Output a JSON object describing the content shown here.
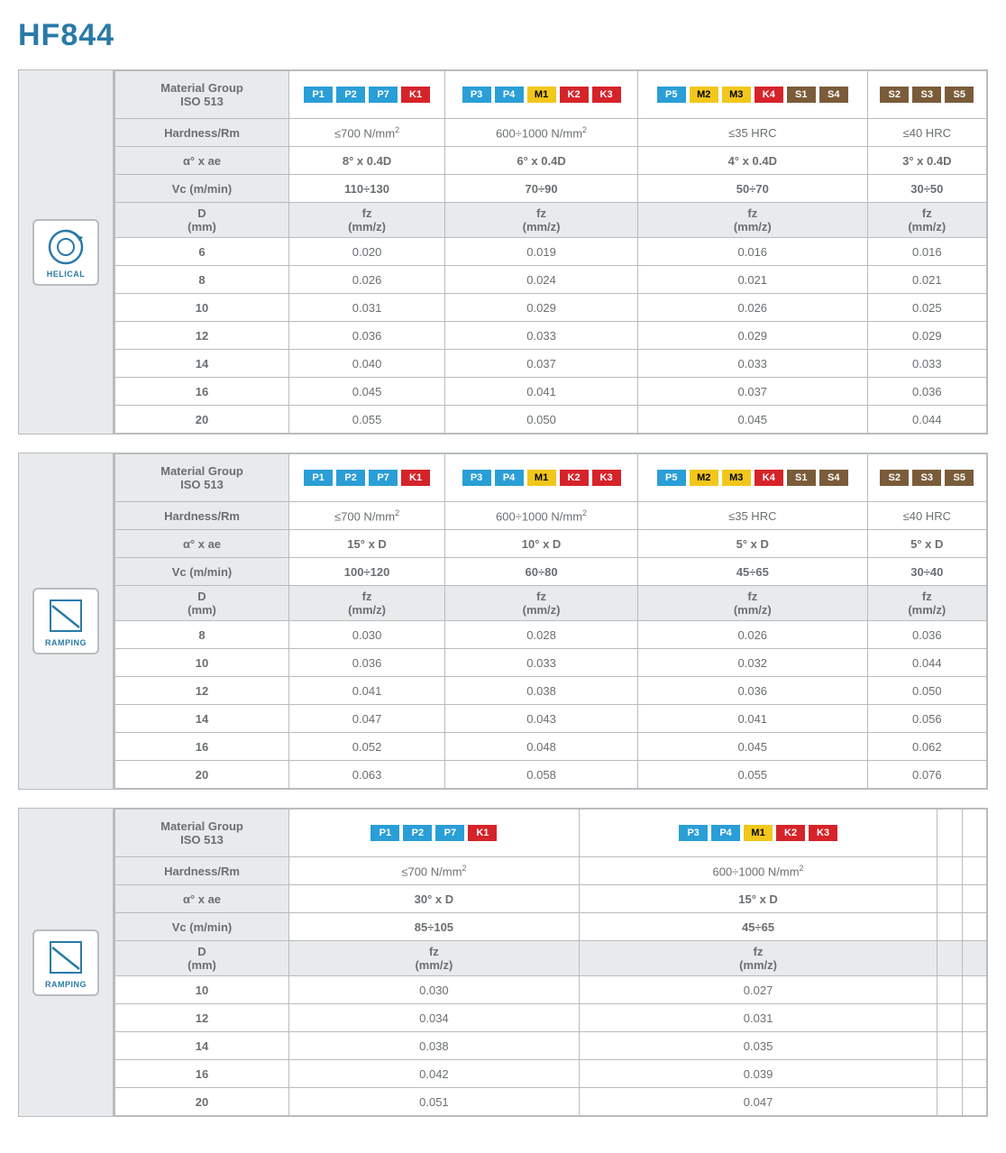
{
  "title": "HF844",
  "colors": {
    "P": "#2a9ed6",
    "M": "#f2c71c",
    "K": "#d6232a",
    "S": "#7a5c3a"
  },
  "labels": {
    "material_group": "Material Group\nISO 513",
    "hardness": "Hardness/Rm",
    "alpha_ae": "α° x ae",
    "vc": "Vc (m/min)",
    "d_mm": "D\n(mm)",
    "fz_mmz": "fz\n(mm/z)"
  },
  "tables": [
    {
      "icon": "helical",
      "icon_label": "HELICAL",
      "columns": [
        {
          "chips": [
            "P1",
            "P2",
            "P7",
            "K1"
          ],
          "hardness": "≤700 N/mm²",
          "alpha": "8° x 0.4D",
          "vc": "110÷130"
        },
        {
          "chips": [
            "P3",
            "P4",
            "M1",
            "K2",
            "K3"
          ],
          "hardness": "600÷1000 N/mm²",
          "alpha": "6° x 0.4D",
          "vc": "70÷90"
        },
        {
          "chips": [
            "P5",
            "M2",
            "M3",
            "K4",
            "S1",
            "S4"
          ],
          "hardness": "≤35 HRC",
          "alpha": "4° x 0.4D",
          "vc": "50÷70"
        },
        {
          "chips": [
            "S2",
            "S3",
            "S5"
          ],
          "hardness": "≤40 HRC",
          "alpha": "3° x 0.4D",
          "vc": "30÷50"
        }
      ],
      "rows": [
        {
          "d": "6",
          "fz": [
            "0.020",
            "0.019",
            "0.016",
            "0.016"
          ]
        },
        {
          "d": "8",
          "fz": [
            "0.026",
            "0.024",
            "0.021",
            "0.021"
          ]
        },
        {
          "d": "10",
          "fz": [
            "0.031",
            "0.029",
            "0.026",
            "0.025"
          ]
        },
        {
          "d": "12",
          "fz": [
            "0.036",
            "0.033",
            "0.029",
            "0.029"
          ]
        },
        {
          "d": "14",
          "fz": [
            "0.040",
            "0.037",
            "0.033",
            "0.033"
          ]
        },
        {
          "d": "16",
          "fz": [
            "0.045",
            "0.041",
            "0.037",
            "0.036"
          ]
        },
        {
          "d": "20",
          "fz": [
            "0.055",
            "0.050",
            "0.045",
            "0.044"
          ]
        }
      ]
    },
    {
      "icon": "ramping",
      "icon_label": "RAMPING",
      "columns": [
        {
          "chips": [
            "P1",
            "P2",
            "P7",
            "K1"
          ],
          "hardness": "≤700 N/mm²",
          "alpha": "15° x D",
          "vc": "100÷120"
        },
        {
          "chips": [
            "P3",
            "P4",
            "M1",
            "K2",
            "K3"
          ],
          "hardness": "600÷1000 N/mm²",
          "alpha": "10° x D",
          "vc": "60÷80"
        },
        {
          "chips": [
            "P5",
            "M2",
            "M3",
            "K4",
            "S1",
            "S4"
          ],
          "hardness": "≤35 HRC",
          "alpha": "5° x D",
          "vc": "45÷65"
        },
        {
          "chips": [
            "S2",
            "S3",
            "S5"
          ],
          "hardness": "≤40 HRC",
          "alpha": "5° x D",
          "vc": "30÷40"
        }
      ],
      "rows": [
        {
          "d": "8",
          "fz": [
            "0.030",
            "0.028",
            "0.026",
            "0.036"
          ]
        },
        {
          "d": "10",
          "fz": [
            "0.036",
            "0.033",
            "0.032",
            "0.044"
          ]
        },
        {
          "d": "12",
          "fz": [
            "0.041",
            "0.038",
            "0.036",
            "0.050"
          ]
        },
        {
          "d": "14",
          "fz": [
            "0.047",
            "0.043",
            "0.041",
            "0.056"
          ]
        },
        {
          "d": "16",
          "fz": [
            "0.052",
            "0.048",
            "0.045",
            "0.062"
          ]
        },
        {
          "d": "20",
          "fz": [
            "0.063",
            "0.058",
            "0.055",
            "0.076"
          ]
        }
      ]
    },
    {
      "icon": "ramping",
      "icon_label": "RAMPING",
      "num_cols": 4,
      "columns": [
        {
          "chips": [
            "P1",
            "P2",
            "P7",
            "K1"
          ],
          "hardness": "≤700 N/mm²",
          "alpha": "30° x D",
          "vc": "85÷105"
        },
        {
          "chips": [
            "P3",
            "P4",
            "M1",
            "K2",
            "K3"
          ],
          "hardness": "600÷1000 N/mm²",
          "alpha": "15° x D",
          "vc": "45÷65"
        }
      ],
      "rows": [
        {
          "d": "10",
          "fz": [
            "0.030",
            "0.027",
            "",
            ""
          ]
        },
        {
          "d": "12",
          "fz": [
            "0.034",
            "0.031",
            "",
            ""
          ]
        },
        {
          "d": "14",
          "fz": [
            "0.038",
            "0.035",
            "",
            ""
          ]
        },
        {
          "d": "16",
          "fz": [
            "0.042",
            "0.039",
            "",
            ""
          ]
        },
        {
          "d": "20",
          "fz": [
            "0.051",
            "0.047",
            "",
            ""
          ]
        }
      ]
    }
  ]
}
